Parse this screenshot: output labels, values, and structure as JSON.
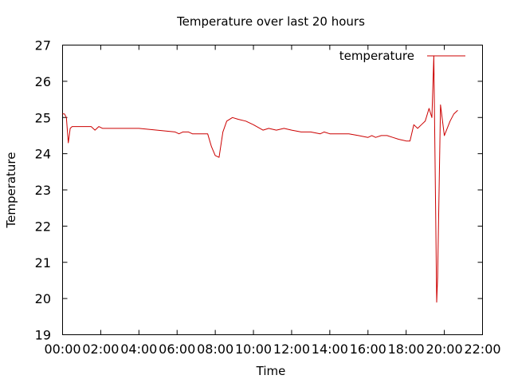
{
  "chart_data": {
    "type": "line",
    "title": "Temperature over last 20 hours",
    "xlabel": "Time",
    "ylabel": "Temperature",
    "xlim": [
      "00:00",
      "22:00"
    ],
    "ylim": [
      19,
      27
    ],
    "x_ticks": [
      "00:00",
      "02:00",
      "04:00",
      "06:00",
      "08:00",
      "10:00",
      "12:00",
      "14:00",
      "16:00",
      "18:00",
      "20:00",
      "22:00"
    ],
    "y_ticks": [
      "19",
      "20",
      "21",
      "22",
      "23",
      "24",
      "25",
      "26",
      "27"
    ],
    "grid": false,
    "legend_position": "top-right",
    "series": [
      {
        "name": "temperature",
        "color": "#cc0000",
        "x": [
          0.0,
          0.1,
          0.2,
          0.3,
          0.4,
          0.5,
          1.5,
          1.7,
          1.9,
          2.1,
          4.0,
          5.9,
          6.1,
          6.3,
          6.6,
          6.8,
          7.6,
          7.8,
          8.0,
          8.2,
          8.4,
          8.6,
          8.9,
          9.2,
          9.6,
          10.0,
          10.5,
          10.8,
          11.2,
          11.6,
          12.0,
          12.5,
          13.0,
          13.5,
          13.7,
          14.0,
          14.5,
          15.0,
          15.5,
          16.0,
          16.2,
          16.4,
          16.7,
          17.0,
          17.3,
          17.6,
          18.0,
          18.2,
          18.4,
          18.6,
          18.8,
          19.0,
          19.2,
          19.35,
          19.45,
          19.55,
          19.6,
          19.65,
          19.8,
          20.0,
          20.3,
          20.5,
          20.7
        ],
        "y": [
          25.1,
          25.1,
          25.0,
          24.3,
          24.7,
          24.75,
          24.75,
          24.65,
          24.75,
          24.7,
          24.7,
          24.6,
          24.55,
          24.6,
          24.6,
          24.55,
          24.55,
          24.2,
          23.95,
          23.9,
          24.6,
          24.9,
          25.0,
          24.95,
          24.9,
          24.8,
          24.65,
          24.7,
          24.65,
          24.7,
          24.65,
          24.6,
          24.6,
          24.55,
          24.6,
          24.55,
          24.55,
          24.55,
          24.5,
          24.45,
          24.5,
          24.45,
          24.5,
          24.5,
          24.45,
          24.4,
          24.35,
          24.35,
          24.8,
          24.7,
          24.8,
          24.9,
          25.25,
          25.0,
          26.7,
          22.2,
          19.9,
          20.6,
          25.35,
          24.5,
          24.9,
          25.1,
          25.2
        ]
      }
    ]
  }
}
